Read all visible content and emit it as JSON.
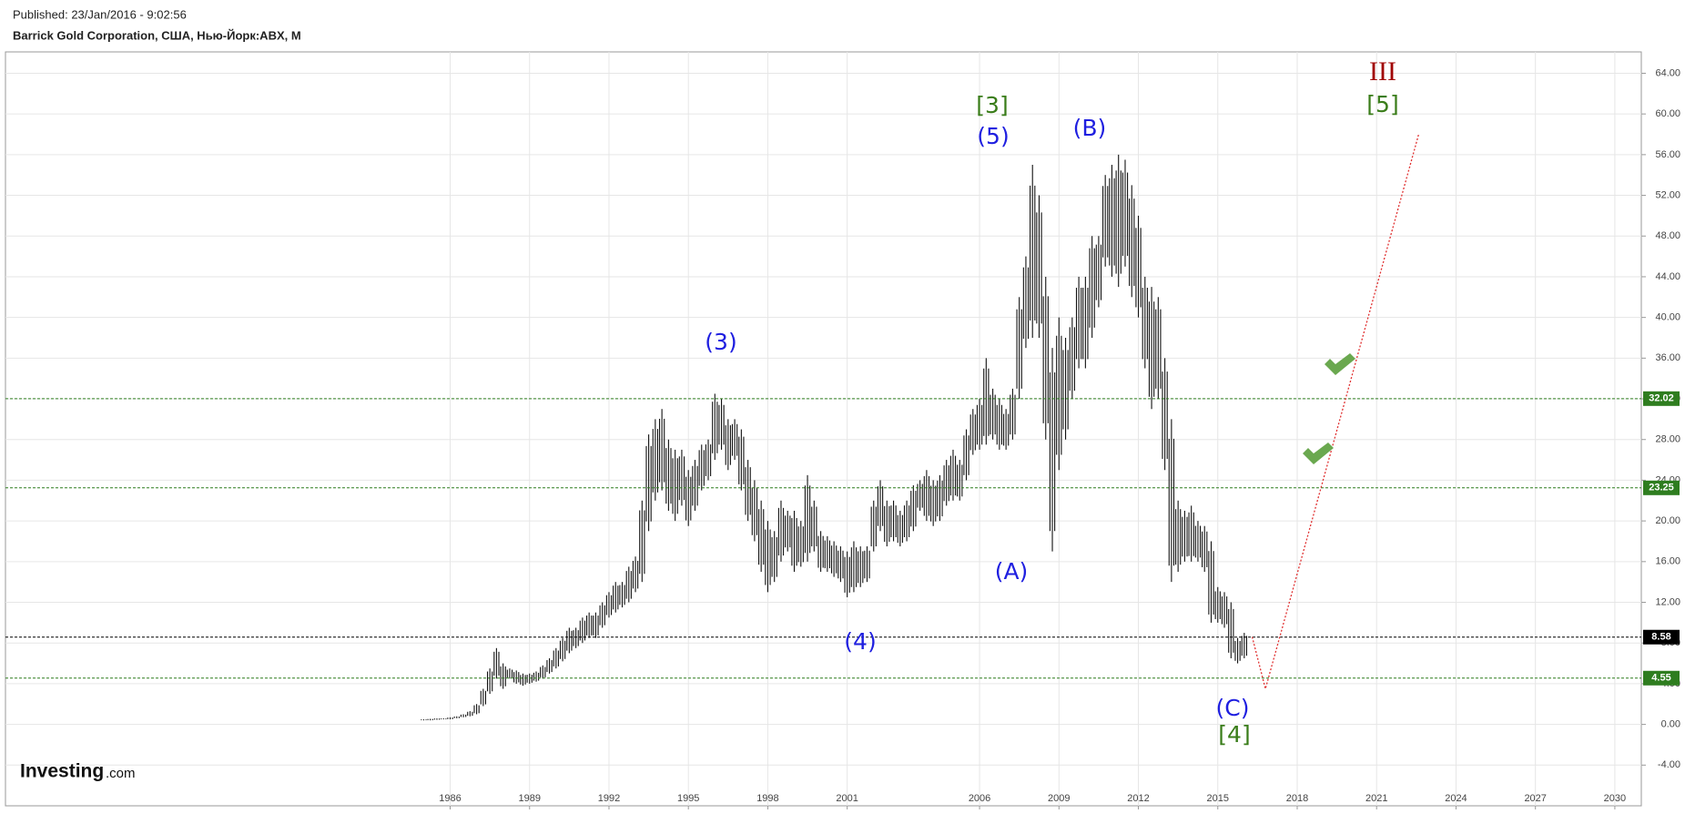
{
  "chart_data": {
    "type": "ohlc",
    "subtitle": "Published: 23/Jan/2016 - 9:02:56",
    "title": "Barrick Gold Corporation, США, Нью-Йорк:ABX, M",
    "xlim": [
      1969.2,
      2031.0
    ],
    "ylim": [
      -8.0,
      66.1
    ],
    "xticks": [
      1986,
      1989,
      1992,
      1995,
      1998,
      2001,
      2006,
      2009,
      2012,
      2015,
      2018,
      2021,
      2024,
      2027,
      2030
    ],
    "yticks": [
      {
        "value": -4,
        "label": "-4.00"
      },
      {
        "value": 0,
        "label": "0.00"
      },
      {
        "value": 4,
        "label": "4.00"
      },
      {
        "value": 8,
        "label": "8.00"
      },
      {
        "value": 12,
        "label": "12.00"
      },
      {
        "value": 16,
        "label": "16.00"
      },
      {
        "value": 20,
        "label": "20.00"
      },
      {
        "value": 24,
        "label": "24.00"
      },
      {
        "value": 28,
        "label": "28.00"
      },
      {
        "value": 32,
        "label": "32.00"
      },
      {
        "value": 36,
        "label": "36.00"
      },
      {
        "value": 40,
        "label": "40.00"
      },
      {
        "value": 44,
        "label": "44.00"
      },
      {
        "value": 48,
        "label": "48.00"
      },
      {
        "value": 52,
        "label": "52.00"
      },
      {
        "value": 56,
        "label": "56.00"
      },
      {
        "value": 60,
        "label": "60.00"
      },
      {
        "value": 64,
        "label": "64.00"
      }
    ],
    "grid": true,
    "color": "#111111",
    "x": [
      1985,
      1985.25,
      1985.5,
      1985.75,
      1986,
      1986.25,
      1986.5,
      1986.75,
      1987,
      1987.25,
      1987.5,
      1987.75,
      1988,
      1988.25,
      1988.5,
      1988.75,
      1989,
      1989.25,
      1989.5,
      1989.75,
      1990,
      1990.25,
      1990.5,
      1990.75,
      1991,
      1991.25,
      1991.5,
      1991.75,
      1992,
      1992.25,
      1992.5,
      1992.75,
      1993,
      1993.25,
      1993.5,
      1993.75,
      1994,
      1994.25,
      1994.5,
      1994.75,
      1995,
      1995.25,
      1995.5,
      1995.75,
      1996,
      1996.25,
      1996.5,
      1996.75,
      1997,
      1997.25,
      1997.5,
      1997.75,
      1998,
      1998.25,
      1998.5,
      1998.75,
      1999,
      1999.25,
      1999.5,
      1999.75,
      2000,
      2000.25,
      2000.5,
      2000.75,
      2001,
      2001.25,
      2001.5,
      2001.75,
      2002,
      2002.25,
      2002.5,
      2002.75,
      2003,
      2003.25,
      2003.5,
      2003.75,
      2004,
      2004.25,
      2004.5,
      2004.75,
      2005,
      2005.25,
      2005.5,
      2005.75,
      2006,
      2006.25,
      2006.5,
      2006.75,
      2007,
      2007.25,
      2007.5,
      2007.75,
      2008,
      2008.25,
      2008.5,
      2008.75,
      2009,
      2009.25,
      2009.5,
      2009.75,
      2010,
      2010.25,
      2010.5,
      2010.75,
      2011,
      2011.25,
      2011.5,
      2011.75,
      2012,
      2012.25,
      2012.5,
      2012.75,
      2013,
      2013.25,
      2013.5,
      2013.75,
      2014,
      2014.25,
      2014.5,
      2014.75,
      2015,
      2015.25,
      2015.5,
      2015.75,
      2016
    ],
    "low": [
      0.4,
      0.4,
      0.45,
      0.5,
      0.5,
      0.6,
      0.7,
      0.8,
      1.0,
      1.8,
      3.0,
      4.5,
      3.5,
      4.5,
      4.0,
      3.8,
      4.0,
      4.2,
      4.5,
      5.0,
      5.5,
      6.2,
      7.0,
      7.5,
      8.0,
      8.5,
      8.5,
      9.5,
      10.5,
      11.0,
      11.5,
      12.0,
      13.0,
      14.0,
      19.0,
      22.0,
      23.0,
      21.0,
      20.0,
      21.5,
      19.5,
      21.0,
      23.0,
      24.0,
      26.0,
      27.0,
      25.0,
      26.0,
      23.0,
      20.0,
      18.0,
      15.0,
      13.0,
      14.0,
      16.0,
      17.0,
      15.0,
      15.5,
      16.0,
      17.0,
      15.0,
      15.0,
      14.5,
      14.0,
      12.5,
      13.0,
      13.5,
      14.0,
      17.0,
      19.0,
      17.5,
      18.0,
      17.5,
      18.0,
      19.0,
      21.0,
      20.0,
      19.5,
      20.0,
      21.5,
      22.0,
      22.0,
      24.0,
      26.5,
      27.0,
      27.5,
      28.0,
      27.0,
      27.0,
      28.0,
      32.0,
      37.0,
      38.0,
      38.0,
      28.0,
      17.0,
      25.0,
      28.0,
      32.0,
      35.0,
      35.0,
      38.0,
      41.0,
      45.0,
      44.0,
      43.0,
      45.0,
      42.0,
      40.0,
      35.0,
      31.0,
      32.0,
      25.0,
      14.0,
      15.0,
      16.0,
      16.0,
      16.0,
      15.0,
      10.0,
      10.0,
      9.5,
      6.5,
      6.0,
      6.5
    ],
    "high": [
      0.5,
      0.55,
      0.6,
      0.6,
      0.7,
      0.8,
      1.0,
      1.3,
      2.0,
      3.5,
      5.5,
      7.5,
      6.0,
      5.5,
      5.3,
      5.0,
      5.0,
      5.2,
      5.8,
      6.5,
      7.5,
      8.5,
      9.5,
      9.5,
      10.5,
      11.0,
      11.0,
      12.0,
      13.0,
      14.0,
      14.0,
      15.5,
      16.5,
      22.0,
      28.5,
      30.0,
      31.0,
      28.0,
      27.0,
      27.0,
      25.0,
      26.0,
      27.5,
      28.0,
      32.5,
      32.0,
      30.0,
      30.0,
      29.0,
      26.0,
      24.0,
      22.0,
      20.0,
      19.0,
      22.0,
      21.0,
      21.0,
      20.0,
      24.5,
      22.0,
      19.0,
      18.5,
      18.0,
      17.5,
      17.0,
      18.0,
      17.5,
      17.5,
      22.0,
      24.0,
      22.0,
      22.0,
      21.0,
      22.0,
      23.5,
      24.0,
      25.0,
      24.0,
      24.5,
      26.0,
      27.0,
      26.0,
      29.0,
      31.0,
      32.0,
      36.0,
      33.0,
      32.0,
      31.0,
      33.0,
      42.0,
      46.0,
      55.0,
      52.0,
      44.0,
      37.0,
      40.0,
      38.0,
      40.0,
      44.0,
      44.0,
      48.0,
      48.0,
      54.0,
      55.0,
      56.0,
      55.5,
      53.0,
      50.0,
      44.0,
      43.0,
      42.0,
      36.0,
      30.0,
      22.0,
      21.0,
      21.5,
      20.0,
      19.5,
      18.0,
      13.5,
      13.0,
      12.0,
      8.5,
      9.0
    ],
    "levels": [
      {
        "value": 32.02,
        "color": "#2e7d1f"
      },
      {
        "value": 23.25,
        "color": "#2e7d1f"
      },
      {
        "value": 8.58,
        "color": "#000000"
      },
      {
        "value": 4.55,
        "color": "#2e7d1f"
      }
    ],
    "projection": {
      "x": [
        2016.3,
        2016.8,
        2022.6
      ],
      "values": [
        8.6,
        3.5,
        58.1
      ],
      "color": "#e03030"
    },
    "annotations": [
      {
        "text": "(3)",
        "color": "#1f1fe0"
      },
      {
        "text": "[3]",
        "color": "#3a7d1a"
      },
      {
        "text": "(5)",
        "color": "#1f1fe0"
      },
      {
        "text": "(B)",
        "color": "#1f1fe0"
      },
      {
        "text": "(A)",
        "color": "#1f1fe0"
      },
      {
        "text": "(4)",
        "color": "#1f1fe0"
      },
      {
        "text": "(C)",
        "color": "#1f1fe0"
      },
      {
        "text": "[4]",
        "color": "#3a7d1a"
      },
      {
        "text": "III",
        "color": "#a00000"
      },
      {
        "text": "[5]",
        "color": "#3a7d1a"
      }
    ]
  },
  "logo": "Investing",
  "logo_suffix": ".com"
}
